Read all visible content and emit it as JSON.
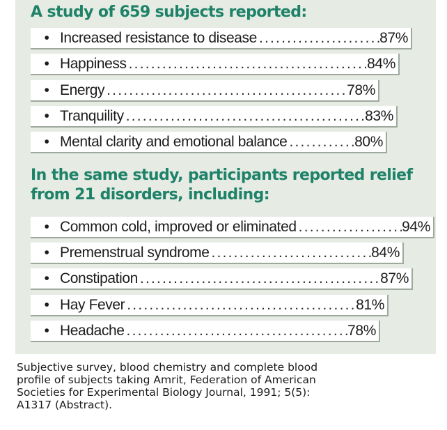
{
  "section1": {
    "heading": "A study of 659 subjects reported:",
    "items": [
      {
        "label": "Increased resistance to disease",
        "value": "87%"
      },
      {
        "label": "Happiness",
        "value": "84%"
      },
      {
        "label": "Energy",
        "value": "78%"
      },
      {
        "label": "Tranquility",
        "value": "83%"
      },
      {
        "label": "Mental clarity and emotional balance",
        "value": "80%"
      }
    ]
  },
  "section2": {
    "heading_line1": "In the same study, participants reported relief",
    "heading_line2": "from 21 disorders, including:",
    "items": [
      {
        "label": "Common cold, improved or eliminated",
        "value": "94%"
      },
      {
        "label": "Premenstrual syndrome",
        "value": "84%"
      },
      {
        "label": "Constipation",
        "value": "87%"
      },
      {
        "label": "Hay Fever",
        "value": "81%"
      },
      {
        "label": "Headache",
        "value": "78%"
      }
    ]
  },
  "bullet": "•",
  "caption": {
    "line1": "Subjective survey, blood chemistry and complete blood",
    "line2": "profile of subjects taking Amrit, Federation of American",
    "line3": "Societies for Experimental Biology Journal, 1991; 5(5):",
    "line4": "A1317 (Abstract)."
  },
  "colors": {
    "panel_background": "#e6ebe4",
    "heading": "#1e8268",
    "row_shadow": "#9ea89c"
  }
}
